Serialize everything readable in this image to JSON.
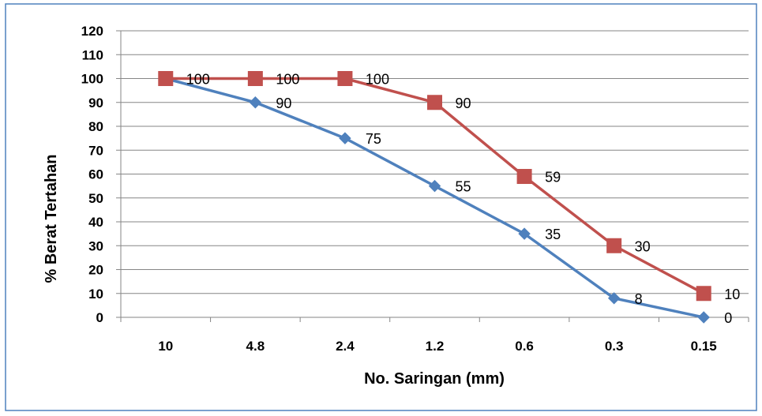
{
  "chart_data": {
    "type": "line",
    "title": "",
    "xlabel": "No. Saringan (mm)",
    "ylabel": "% Berat Tertahan",
    "categories": [
      "10",
      "4.8",
      "2.4",
      "1.2",
      "0.6",
      "0.3",
      "0.15"
    ],
    "yticks": [
      "0",
      "10",
      "20",
      "30",
      "40",
      "50",
      "60",
      "70",
      "80",
      "90",
      "100",
      "110",
      "120"
    ],
    "ylim": [
      0,
      120
    ],
    "grid": true,
    "legend": "none",
    "series": [
      {
        "values": [
          100,
          90,
          75,
          55,
          35,
          8,
          0
        ],
        "labels": [
          "",
          "90",
          "75",
          "55",
          "35",
          "8",
          "0"
        ],
        "color": "#4F81BD",
        "marker": "diamond"
      },
      {
        "values": [
          100,
          100,
          100,
          90,
          59,
          30,
          10
        ],
        "labels": [
          "100",
          "100",
          "100",
          "90",
          "59",
          "30",
          "10"
        ],
        "color": "#C0504D",
        "marker": "square"
      }
    ]
  },
  "colors": {
    "frame": "#4F81BD",
    "grid": "#868686"
  }
}
